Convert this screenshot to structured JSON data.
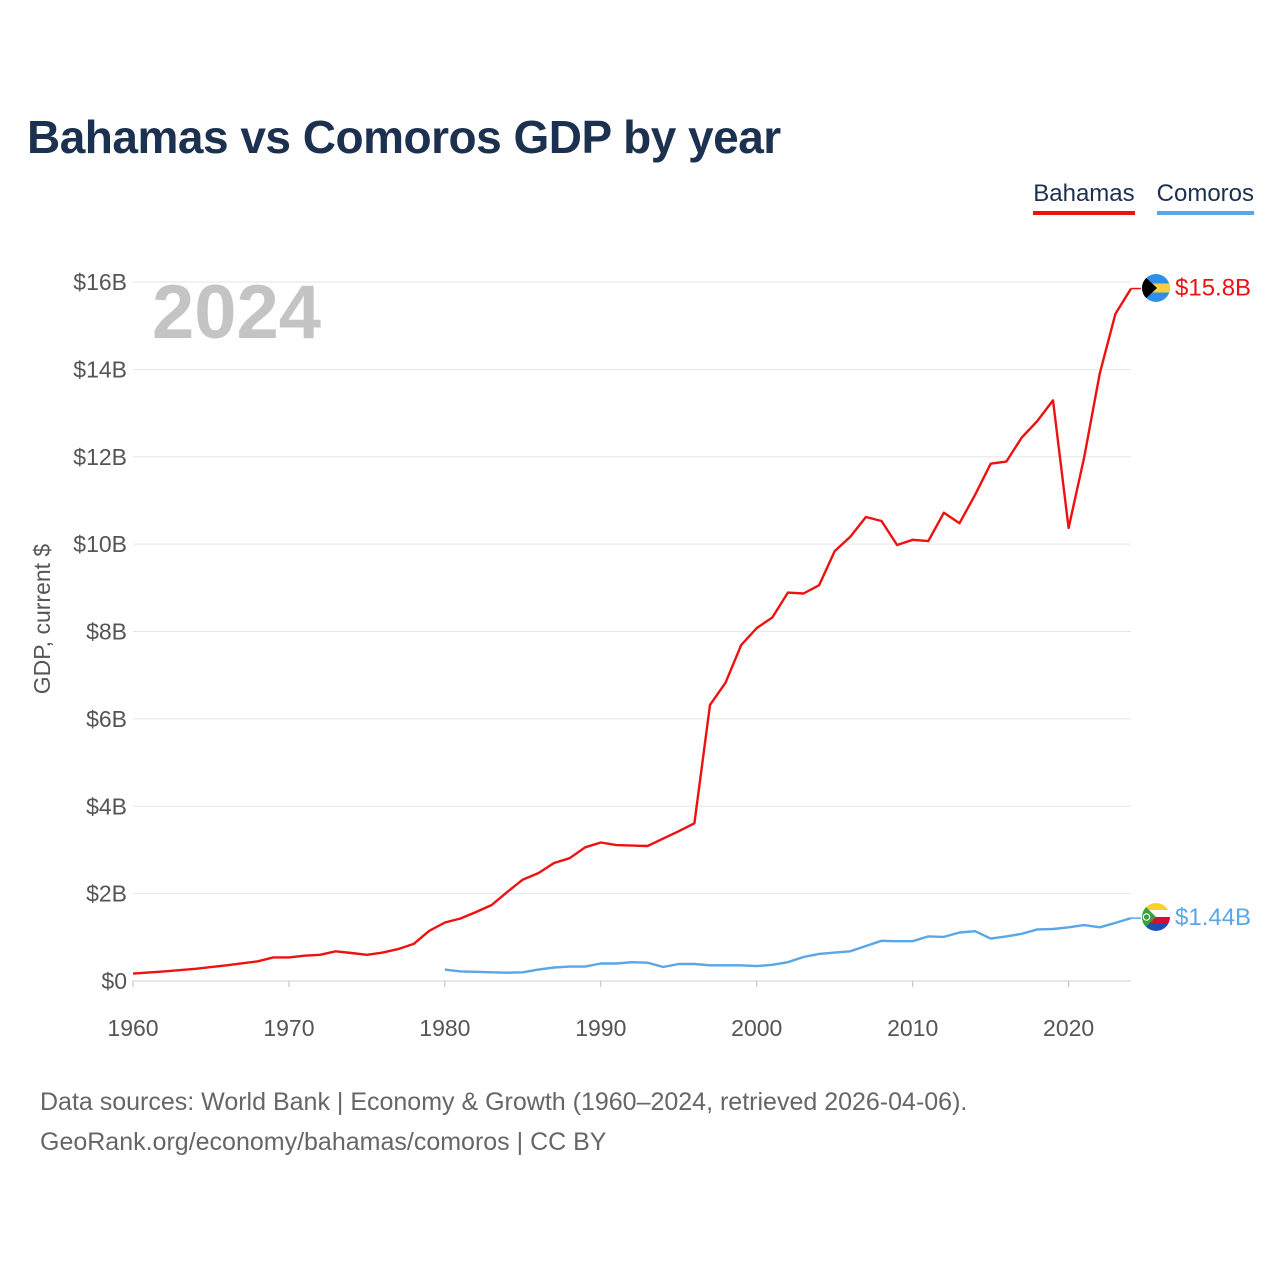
{
  "title": "Bahamas vs Comoros GDP by year",
  "legend": [
    {
      "label": "Bahamas",
      "color": "#ee1111"
    },
    {
      "label": "Comoros",
      "color": "#5aa6e6"
    }
  ],
  "year_watermark": "2024",
  "footer": {
    "line1": "Data sources: World Bank | Economy & Growth (1960–2024, retrieved 2026-04-06).",
    "line2": "GeoRank.org/economy/bahamas/comoros | CC BY"
  },
  "chart_data": {
    "type": "line",
    "title": "Bahamas vs Comoros GDP by year",
    "xlabel": "",
    "ylabel": "GDP, current $",
    "xlim": [
      1960,
      2024
    ],
    "ylim": [
      0,
      16
    ],
    "y_unit": "billions USD",
    "x_ticks": [
      1960,
      1970,
      1980,
      1990,
      2000,
      2010,
      2020
    ],
    "y_ticks": [
      {
        "value": 0,
        "label": "$0"
      },
      {
        "value": 2,
        "label": "$2B"
      },
      {
        "value": 4,
        "label": "$4B"
      },
      {
        "value": 6,
        "label": "$6B"
      },
      {
        "value": 8,
        "label": "$8B"
      },
      {
        "value": 10,
        "label": "$10B"
      },
      {
        "value": 12,
        "label": "$12B"
      },
      {
        "value": 14,
        "label": "$14B"
      },
      {
        "value": 16,
        "label": "$16B"
      }
    ],
    "grid": true,
    "legend_position": "top-right",
    "series": [
      {
        "name": "Bahamas",
        "color": "#ee1111",
        "end_label": "$15.8B",
        "flag": "bahamas-flag",
        "x": [
          1960,
          1962,
          1964,
          1966,
          1968,
          1969,
          1970,
          1971,
          1972,
          1973,
          1974,
          1975,
          1976,
          1977,
          1978,
          1979,
          1980,
          1981,
          1982,
          1983,
          1984,
          1985,
          1986,
          1987,
          1988,
          1989,
          1990,
          1991,
          1992,
          1993,
          1994,
          1995,
          1996,
          1997,
          1998,
          1999,
          2000,
          2001,
          2002,
          2003,
          2004,
          2005,
          2006,
          2007,
          2008,
          2009,
          2010,
          2011,
          2012,
          2013,
          2014,
          2015,
          2016,
          2017,
          2018,
          2019,
          2020,
          2021,
          2022,
          2023,
          2024
        ],
        "y": [
          0.17,
          0.22,
          0.28,
          0.36,
          0.45,
          0.54,
          0.54,
          0.58,
          0.6,
          0.68,
          0.64,
          0.6,
          0.65,
          0.73,
          0.85,
          1.15,
          1.34,
          1.43,
          1.58,
          1.74,
          2.04,
          2.32,
          2.47,
          2.7,
          2.81,
          3.06,
          3.17,
          3.11,
          3.1,
          3.09,
          3.26,
          3.43,
          3.61,
          6.32,
          6.83,
          7.69,
          8.08,
          8.32,
          8.89,
          8.87,
          9.06,
          9.84,
          10.17,
          10.62,
          10.53,
          9.98,
          10.1,
          10.07,
          10.72,
          10.48,
          11.13,
          11.84,
          11.89,
          12.44,
          12.82,
          13.29,
          10.37,
          11.99,
          13.91,
          15.27,
          15.85
        ]
      },
      {
        "name": "Comoros",
        "color": "#5aa6e6",
        "end_label": "$1.44B",
        "flag": "comoros-flag",
        "x": [
          1980,
          1981,
          1982,
          1983,
          1984,
          1985,
          1986,
          1987,
          1988,
          1989,
          1990,
          1991,
          1992,
          1993,
          1994,
          1995,
          1996,
          1997,
          1998,
          1999,
          2000,
          2001,
          2002,
          2003,
          2004,
          2005,
          2006,
          2007,
          2008,
          2009,
          2010,
          2011,
          2012,
          2013,
          2014,
          2015,
          2016,
          2017,
          2018,
          2019,
          2020,
          2021,
          2022,
          2023,
          2024
        ],
        "y": [
          0.26,
          0.22,
          0.21,
          0.2,
          0.19,
          0.2,
          0.26,
          0.31,
          0.33,
          0.33,
          0.4,
          0.4,
          0.43,
          0.42,
          0.32,
          0.39,
          0.39,
          0.36,
          0.36,
          0.36,
          0.34,
          0.37,
          0.43,
          0.55,
          0.62,
          0.65,
          0.68,
          0.8,
          0.92,
          0.91,
          0.91,
          1.02,
          1.01,
          1.11,
          1.14,
          0.97,
          1.02,
          1.08,
          1.18,
          1.19,
          1.23,
          1.28,
          1.23,
          1.33,
          1.44
        ]
      }
    ]
  }
}
